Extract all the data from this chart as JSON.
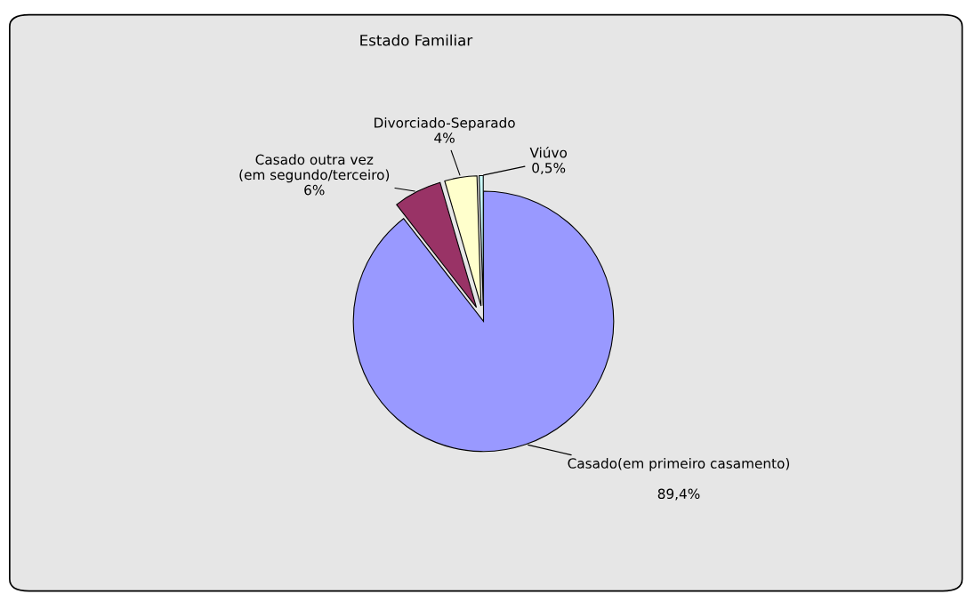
{
  "chart_data": {
    "type": "pie",
    "title": "Estado Familiar",
    "categories": [
      "Casado(em primeiro casamento)",
      "Casado outra vez (em segundo/terceiro)",
      "Divorciado-Separado",
      "Viúvo"
    ],
    "values": [
      89.4,
      6,
      4,
      0.5
    ],
    "value_labels": [
      "89,4%",
      "6%",
      "4%",
      "0,5%"
    ],
    "colors": [
      "#9999ff",
      "#993366",
      "#ffffcc",
      "#ccffff"
    ],
    "legend": false
  }
}
